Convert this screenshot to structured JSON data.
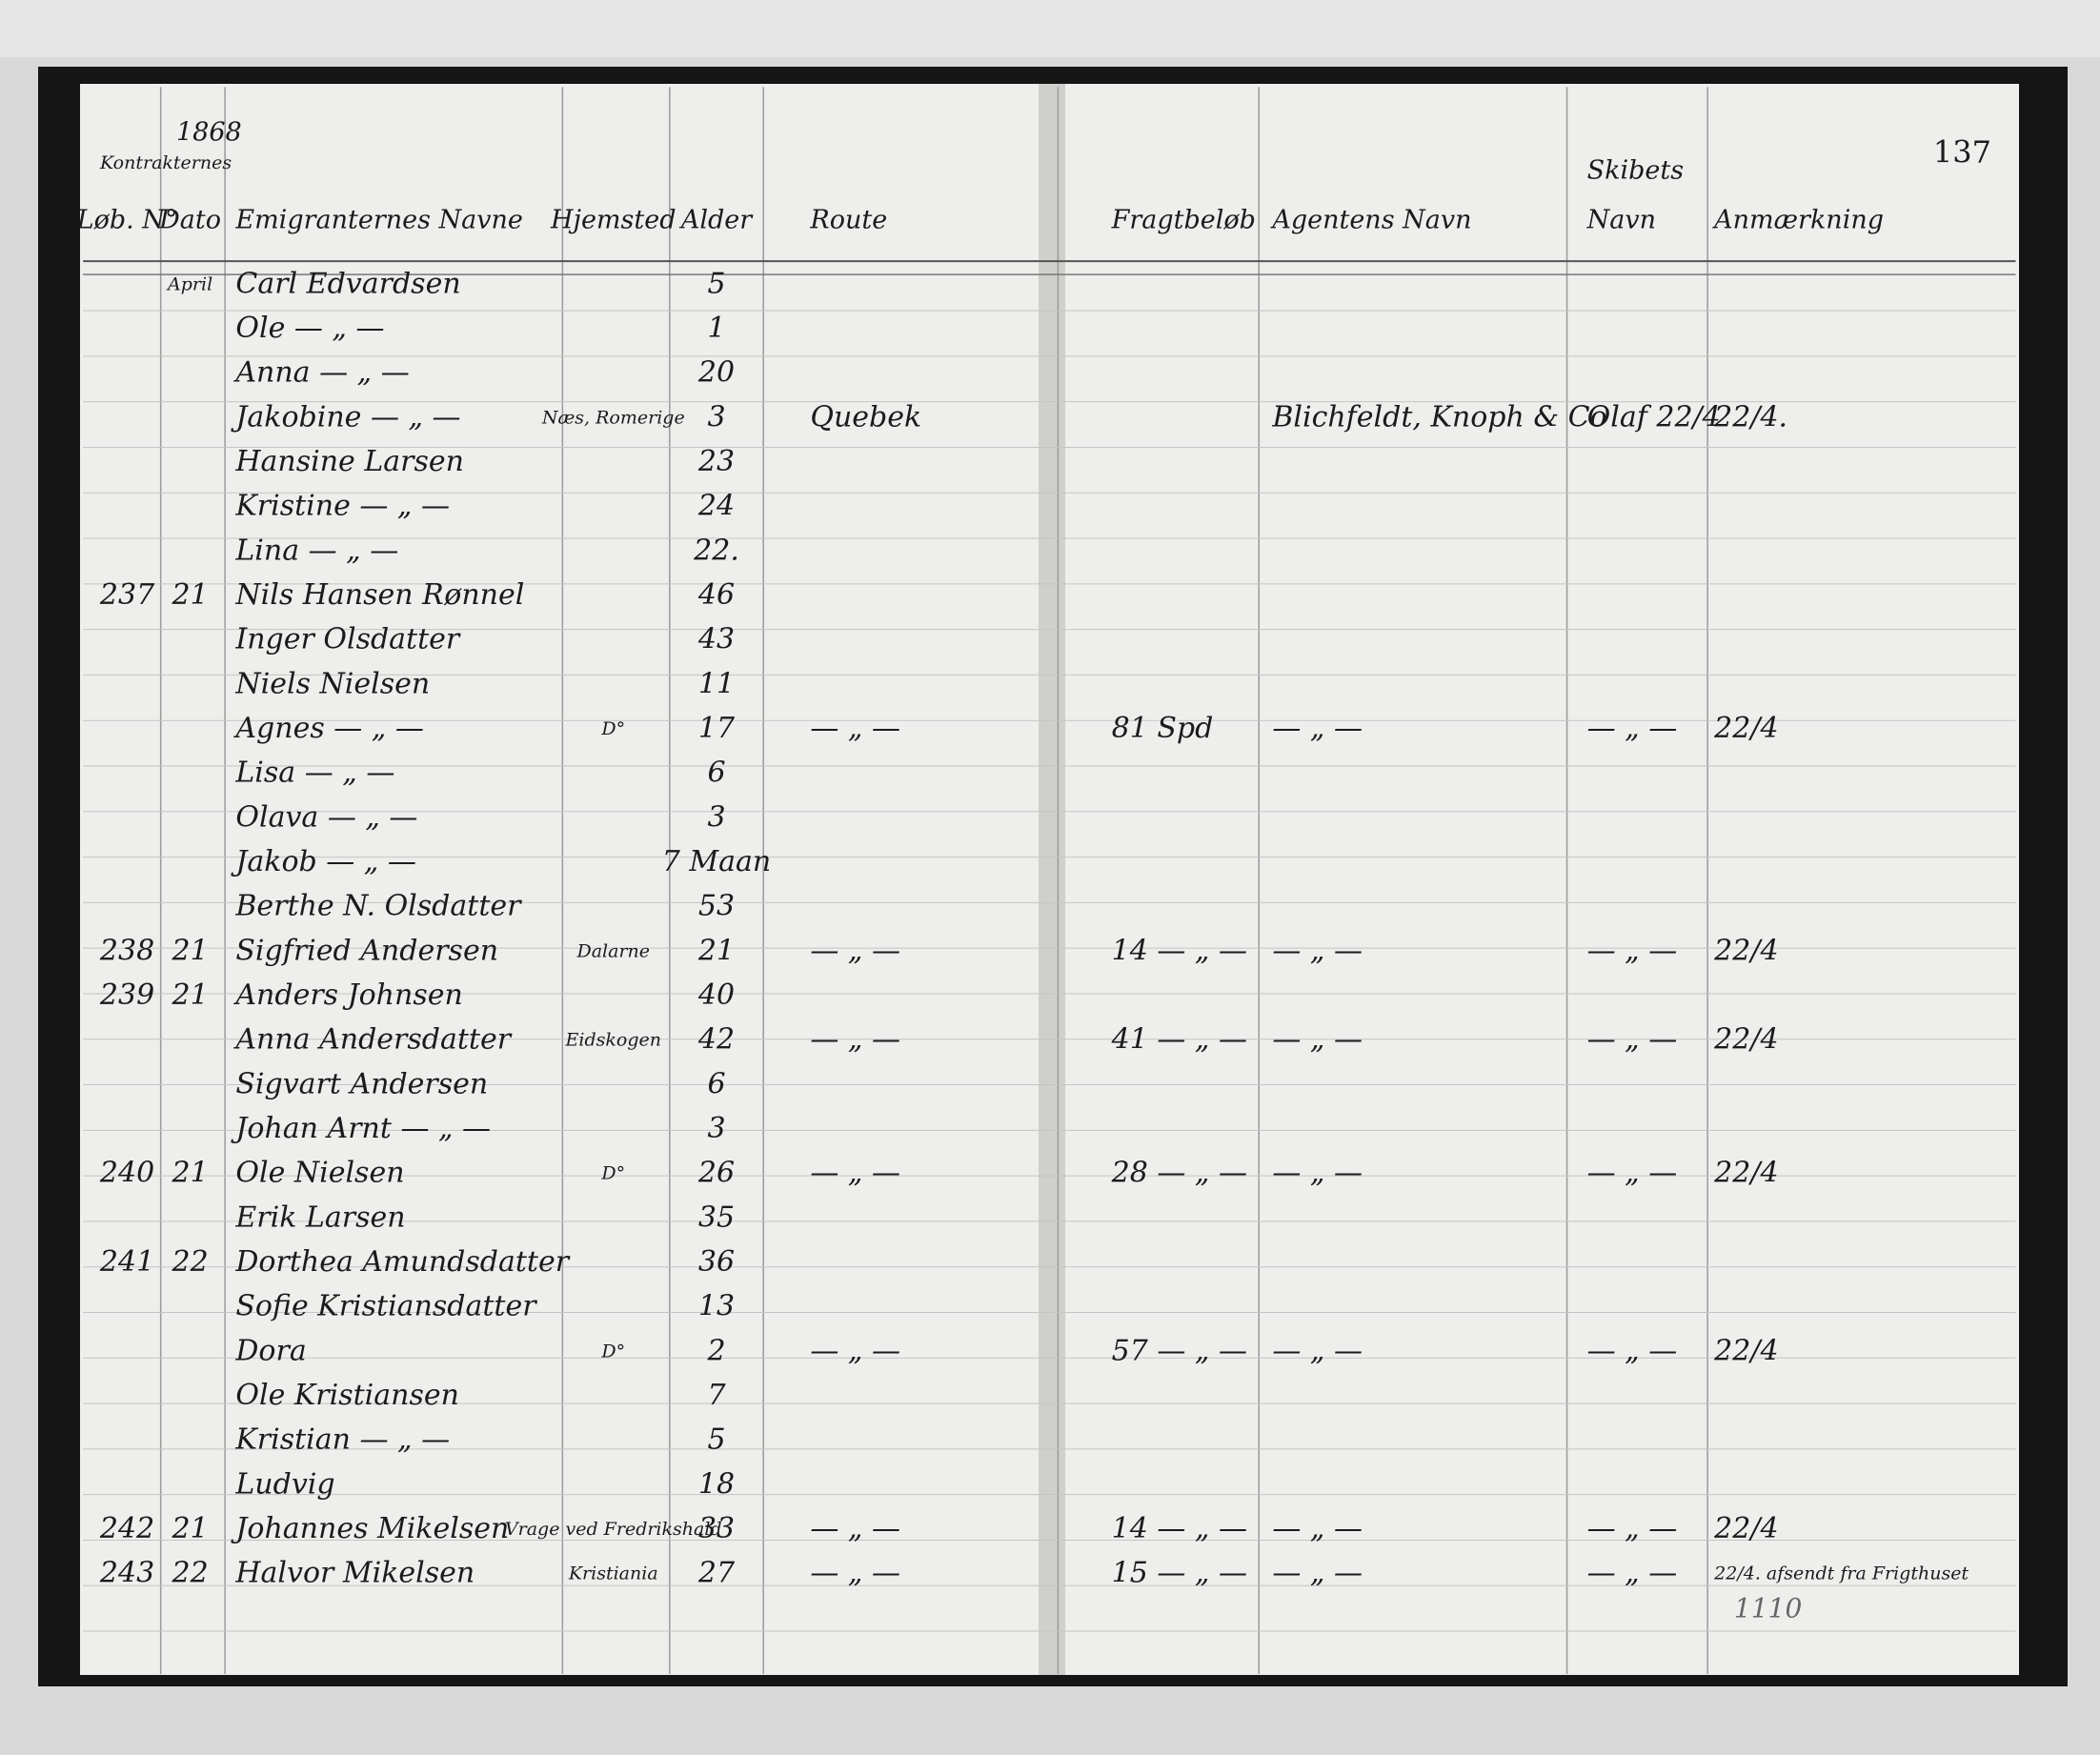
{
  "page_number": "137",
  "year": "1868",
  "header": {
    "contracts": "Kontrakternes",
    "lot": "Løb. N°",
    "date": "Dato",
    "name": "Emigranternes Navne",
    "home": "Hjemsted",
    "age": "Alder",
    "route": "Route",
    "freight": "Fragtbeløb",
    "agent": "Agentens Navn",
    "ship_top": "Skibets",
    "ship": "Navn",
    "remarks": "Anmærkning"
  },
  "rows": [
    {
      "date": "April",
      "name": "Carl Edvardsen",
      "age": "5"
    },
    {
      "name": "Ole — „ —",
      "age": "1"
    },
    {
      "name": "Anna — „ —",
      "age": "20"
    },
    {
      "name": "Jakobine — „ —",
      "home": "Næs, Romerige",
      "age": "3",
      "route": "Quebek",
      "agent": "Blichfeldt, Knoph & Co",
      "ship": "Olaf 22/4",
      "remarks": "22/4."
    },
    {
      "name": "Hansine Larsen",
      "age": "23"
    },
    {
      "name": "Kristine — „ —",
      "age": "24"
    },
    {
      "name": "Lina — „ —",
      "age": "22."
    },
    {
      "lot": "237",
      "date": "21",
      "name": "Nils Hansen Rønnel",
      "age": "46"
    },
    {
      "name": "Inger Olsdatter",
      "age": "43"
    },
    {
      "name": "Niels Nielsen",
      "age": "11"
    },
    {
      "name": "Agnes — „ —",
      "home": "D°",
      "age": "17",
      "route": "— „ —",
      "freight": "81 Spd",
      "agent": "— „ —",
      "ship": "— „ —",
      "remarks": "22/4"
    },
    {
      "name": "Lisa — „ —",
      "age": "6"
    },
    {
      "name": "Olava — „ —",
      "age": "3"
    },
    {
      "name": "Jakob — „ —",
      "age": "7 Maan"
    },
    {
      "name": "Berthe N. Olsdatter",
      "age": "53"
    },
    {
      "lot": "238",
      "date": "21",
      "name": "Sigfried Andersen",
      "home": "Dalarne",
      "age": "21",
      "route": "— „ —",
      "freight": "14 — „ —",
      "agent": "— „ —",
      "ship": "— „ —",
      "remarks": "22/4"
    },
    {
      "lot": "239",
      "date": "21",
      "name": "Anders Johnsen",
      "age": "40"
    },
    {
      "name": "Anna Andersdatter",
      "home": "Eidskogen",
      "age": "42",
      "route": "— „ —",
      "freight": "41 — „ —",
      "agent": "— „ —",
      "ship": "— „ —",
      "remarks": "22/4"
    },
    {
      "name": "Sigvart Andersen",
      "age": "6"
    },
    {
      "name": "Johan Arnt — „ —",
      "age": "3"
    },
    {
      "lot": "240",
      "date": "21",
      "name": "Ole Nielsen",
      "home": "D°",
      "age": "26",
      "route": "— „ —",
      "freight": "28 — „ —",
      "agent": "— „ —",
      "ship": "— „ —",
      "remarks": "22/4"
    },
    {
      "name": "Erik Larsen",
      "age": "35"
    },
    {
      "lot": "241",
      "date": "22",
      "name": "Dorthea Amundsdatter",
      "age": "36"
    },
    {
      "name": "Sofie Kristiansdatter",
      "age": "13"
    },
    {
      "name": "Dora",
      "home": "D°",
      "age": "2",
      "route": "— „ —",
      "freight": "57 — „ —",
      "agent": "— „ —",
      "ship": "— „ —",
      "remarks": "22/4"
    },
    {
      "name": "Ole Kristiansen",
      "age": "7"
    },
    {
      "name": "Kristian — „ —",
      "age": "5"
    },
    {
      "name": "Ludvig",
      "age": "18"
    },
    {
      "lot": "242",
      "date": "21",
      "name": "Johannes Mikelsen",
      "home": "Vrage ved Fredrikshald",
      "age": "33",
      "route": "— „ —",
      "freight": "14 — „ —",
      "agent": "— „ —",
      "ship": "— „ —",
      "remarks": "22/4"
    },
    {
      "lot": "243",
      "date": "22",
      "name": "Halvor Mikelsen",
      "home": "Kristiania",
      "age": "27",
      "route": "— „ —",
      "freight": "15 — „ —",
      "agent": "— „ —",
      "ship": "— „ —",
      "remarks": "22/4. afsendt fra Frigthuset"
    }
  ],
  "footer_note": "1110"
}
